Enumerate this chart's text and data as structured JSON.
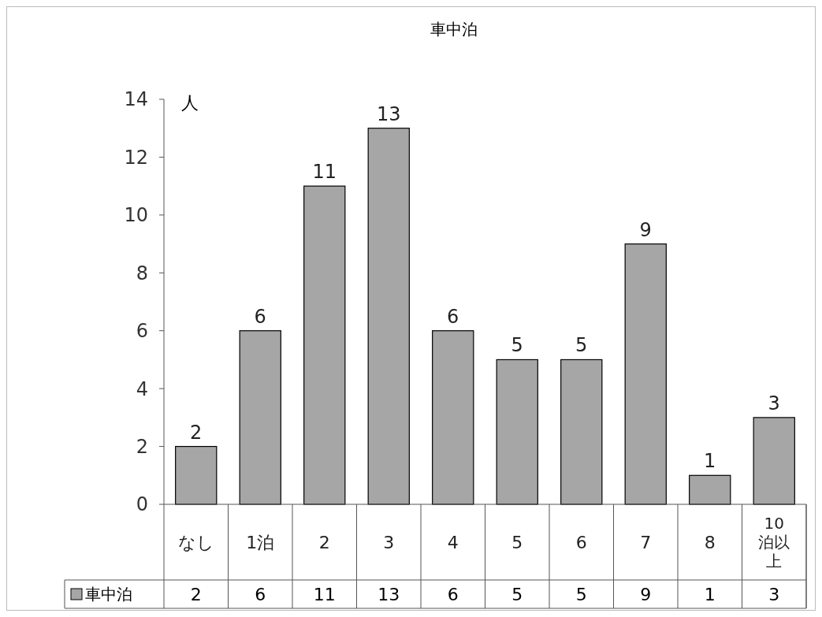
{
  "chart_data": {
    "type": "bar",
    "title": "車中泊",
    "ylabel": "人",
    "categories": [
      "なし",
      "1泊",
      "2",
      "3",
      "4",
      "5",
      "6",
      "7",
      "8",
      "10泊以上"
    ],
    "series": [
      {
        "name": "車中泊",
        "color": "#a6a6a6",
        "values": [
          2,
          6,
          11,
          13,
          6,
          5,
          5,
          9,
          1,
          3
        ],
        "value_labels": [
          "2",
          "6",
          "11",
          "13",
          "6",
          "5",
          "5",
          "9",
          "1",
          "3"
        ]
      }
    ],
    "ylim": [
      0,
      14
    ],
    "yticks": [
      0,
      2,
      4,
      6,
      8,
      10,
      12,
      14
    ],
    "grid": false,
    "legend": "bottom",
    "data_labels": true
  }
}
